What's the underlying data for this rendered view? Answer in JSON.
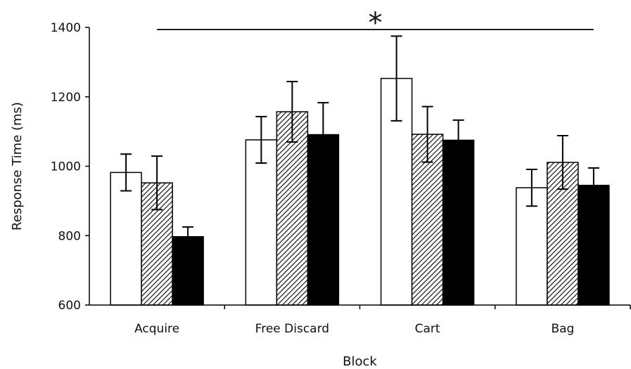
{
  "chart_data": {
    "type": "bar",
    "xlabel": "Block",
    "ylabel": "Response Time (ms)",
    "ylim": [
      600,
      1400
    ],
    "yticks": [
      600,
      800,
      1000,
      1200,
      1400
    ],
    "categories": [
      "Acquire",
      "Free Discard",
      "Cart",
      "Bag"
    ],
    "series": [
      {
        "fill": "white",
        "values": [
          982,
          1076,
          1253,
          938
        ],
        "errors": [
          53,
          67,
          122,
          53
        ]
      },
      {
        "fill": "hatched",
        "values": [
          952,
          1157,
          1092,
          1011
        ],
        "errors": [
          77,
          87,
          80,
          77
        ]
      },
      {
        "fill": "black",
        "values": [
          797,
          1091,
          1075,
          945
        ],
        "errors": [
          28,
          92,
          58,
          50
        ]
      }
    ],
    "annotation": {
      "text": "*",
      "span_categories": [
        "Acquire",
        "Bag"
      ]
    },
    "grid": false,
    "legend": "none"
  },
  "colors": {
    "axis": "#000000",
    "bar_white": "#ffffff",
    "bar_black": "#000000",
    "hatch": "#000000"
  }
}
